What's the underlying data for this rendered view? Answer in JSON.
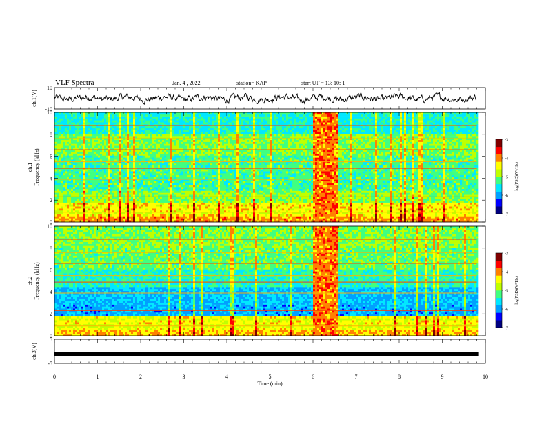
{
  "header": {
    "title": "VLF Spectra",
    "date": "Jan. 4 , 2022",
    "station": "station= KAP",
    "start": "start UT =  13: 10: 1"
  },
  "colors": {
    "colormap": [
      "#000080",
      "#0000ff",
      "#00a0ff",
      "#00e8ff",
      "#40ff80",
      "#c0ff00",
      "#ffff00",
      "#ff8000",
      "#ff0000",
      "#800000"
    ],
    "waveform": "#000000",
    "frame": "#000000"
  },
  "chart_data": [
    {
      "type": "line",
      "name": "ch1-waveform",
      "ylabel": "ch.1(V)",
      "ylim": [
        -10,
        10
      ],
      "ytick_labels": [
        "10",
        "-10"
      ],
      "xlim": [
        0,
        10
      ],
      "trace_span_min": [
        0,
        9.8
      ],
      "baseline_v": 0,
      "amplitude_v": 3
    },
    {
      "type": "heatmap",
      "name": "ch1-spectrogram",
      "ylabel_top": "ch.1",
      "ylabel": "Frequency (kHz)",
      "ylim": [
        0,
        10
      ],
      "yticks": [
        "0",
        "2",
        "4",
        "6",
        "8",
        "10"
      ],
      "xlim": [
        0,
        10
      ],
      "data_span_min": [
        0,
        9.8
      ],
      "event_min": [
        6.0,
        6.55
      ],
      "colorbar": {
        "ticks": [
          "-3",
          "-4",
          "-5",
          "-6",
          "-7"
        ],
        "label": "log(PSD)(V²/Hz)",
        "range": [
          -7,
          -3
        ]
      }
    },
    {
      "type": "heatmap",
      "name": "ch2-spectrogram",
      "ylabel_top": "ch.2",
      "ylabel": "Frequency (kHz)",
      "ylim": [
        0,
        10
      ],
      "yticks": [
        "0",
        "2",
        "4",
        "6",
        "8",
        "10"
      ],
      "xlim": [
        0,
        10
      ],
      "data_span_min": [
        0,
        9.8
      ],
      "event_min": [
        6.0,
        6.55
      ],
      "colorbar": {
        "ticks": [
          "-3",
          "-4",
          "-5",
          "-6",
          "-7"
        ],
        "label": "log(PSD)(V²/Hz)",
        "range": [
          -7,
          -3
        ]
      }
    },
    {
      "type": "line",
      "name": "ch3-signal",
      "ylabel": "ch.3(V)",
      "ylim": [
        -5,
        5
      ],
      "ytick_labels": [
        "5",
        "-5"
      ],
      "value_v": -1.2
    }
  ],
  "xaxis": {
    "label": "Time (min)",
    "ticks": [
      "0",
      "1",
      "2",
      "3",
      "4",
      "5",
      "6",
      "7",
      "8",
      "9",
      "10"
    ]
  }
}
